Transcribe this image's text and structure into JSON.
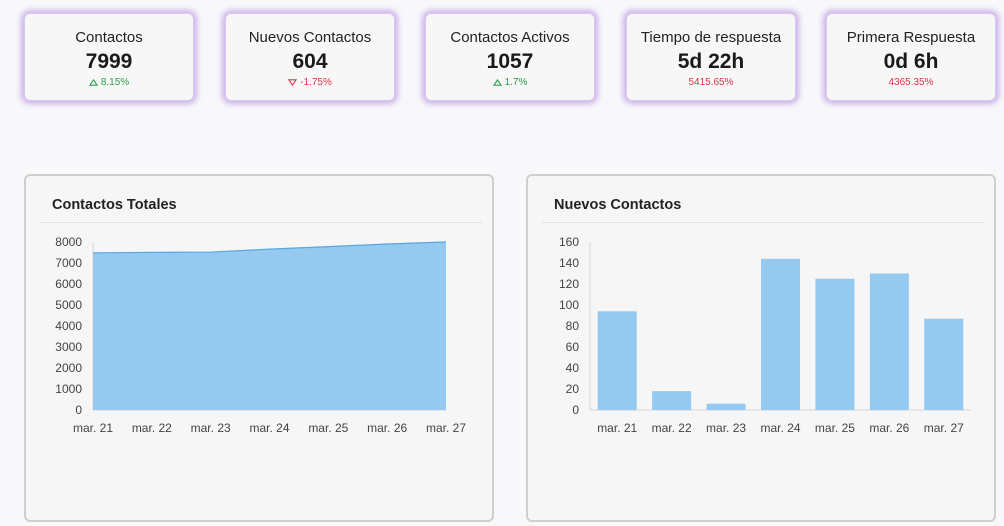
{
  "kpis": [
    {
      "title": "Contactos",
      "value": "7999",
      "change": "8.15%",
      "trend": "up"
    },
    {
      "title": "Nuevos Contactos",
      "value": "604",
      "change": "-1.75%",
      "trend": "down"
    },
    {
      "title": "Contactos Activos",
      "value": "1057",
      "change": "1.7%",
      "trend": "up"
    },
    {
      "title": "Tiempo de respuesta",
      "value": "5d 22h",
      "change": "5415.65%",
      "trend": "none"
    },
    {
      "title": "Primera Respuesta",
      "value": "0d 6h",
      "change": "4365.35%",
      "trend": "none"
    }
  ],
  "colors": {
    "up": "#2e9e4a",
    "down": "#d9334a",
    "fill": "#95c9f0",
    "line": "#5aa7e0",
    "glow": "#965fd7"
  },
  "icons": {
    "up": "triangle-up-icon",
    "down": "triangle-down-icon"
  },
  "chart_data": [
    {
      "type": "area",
      "title": "Contactos Totales",
      "categories": [
        "mar. 21",
        "mar. 22",
        "mar. 23",
        "mar. 24",
        "mar. 25",
        "mar. 26",
        "mar. 27"
      ],
      "values": [
        7485,
        7505,
        7520,
        7660,
        7780,
        7905,
        7999
      ],
      "ylim": [
        0,
        8000
      ],
      "yticks": [
        0,
        1000,
        2000,
        3000,
        4000,
        5000,
        6000,
        7000,
        8000
      ],
      "grid": false,
      "legend": "none"
    },
    {
      "type": "bar",
      "title": "Nuevos Contactos",
      "categories": [
        "mar. 21",
        "mar. 22",
        "mar. 23",
        "mar. 24",
        "mar. 25",
        "mar. 26",
        "mar. 27"
      ],
      "values": [
        94,
        18,
        6,
        144,
        125,
        130,
        87
      ],
      "ylim": [
        0,
        160
      ],
      "yticks": [
        0,
        20,
        40,
        60,
        80,
        100,
        120,
        140,
        160
      ],
      "grid": false,
      "legend": "none"
    }
  ]
}
